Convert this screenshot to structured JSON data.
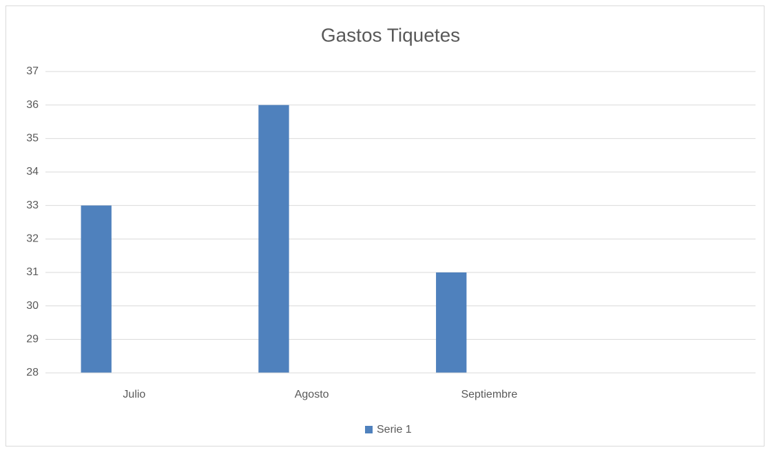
{
  "chart_data": {
    "type": "bar",
    "title": "Gastos Tiquetes",
    "categories": [
      "Julio",
      "Agosto",
      "Septiembre",
      null
    ],
    "series": [
      {
        "name": "Serie 1",
        "color": "#4f81bd",
        "values": [
          33,
          36,
          31,
          null
        ]
      }
    ],
    "ylim": [
      28,
      37
    ],
    "yticks": [
      28,
      29,
      30,
      31,
      32,
      33,
      34,
      35,
      36,
      37
    ],
    "grid": true,
    "legend": "bottom"
  }
}
